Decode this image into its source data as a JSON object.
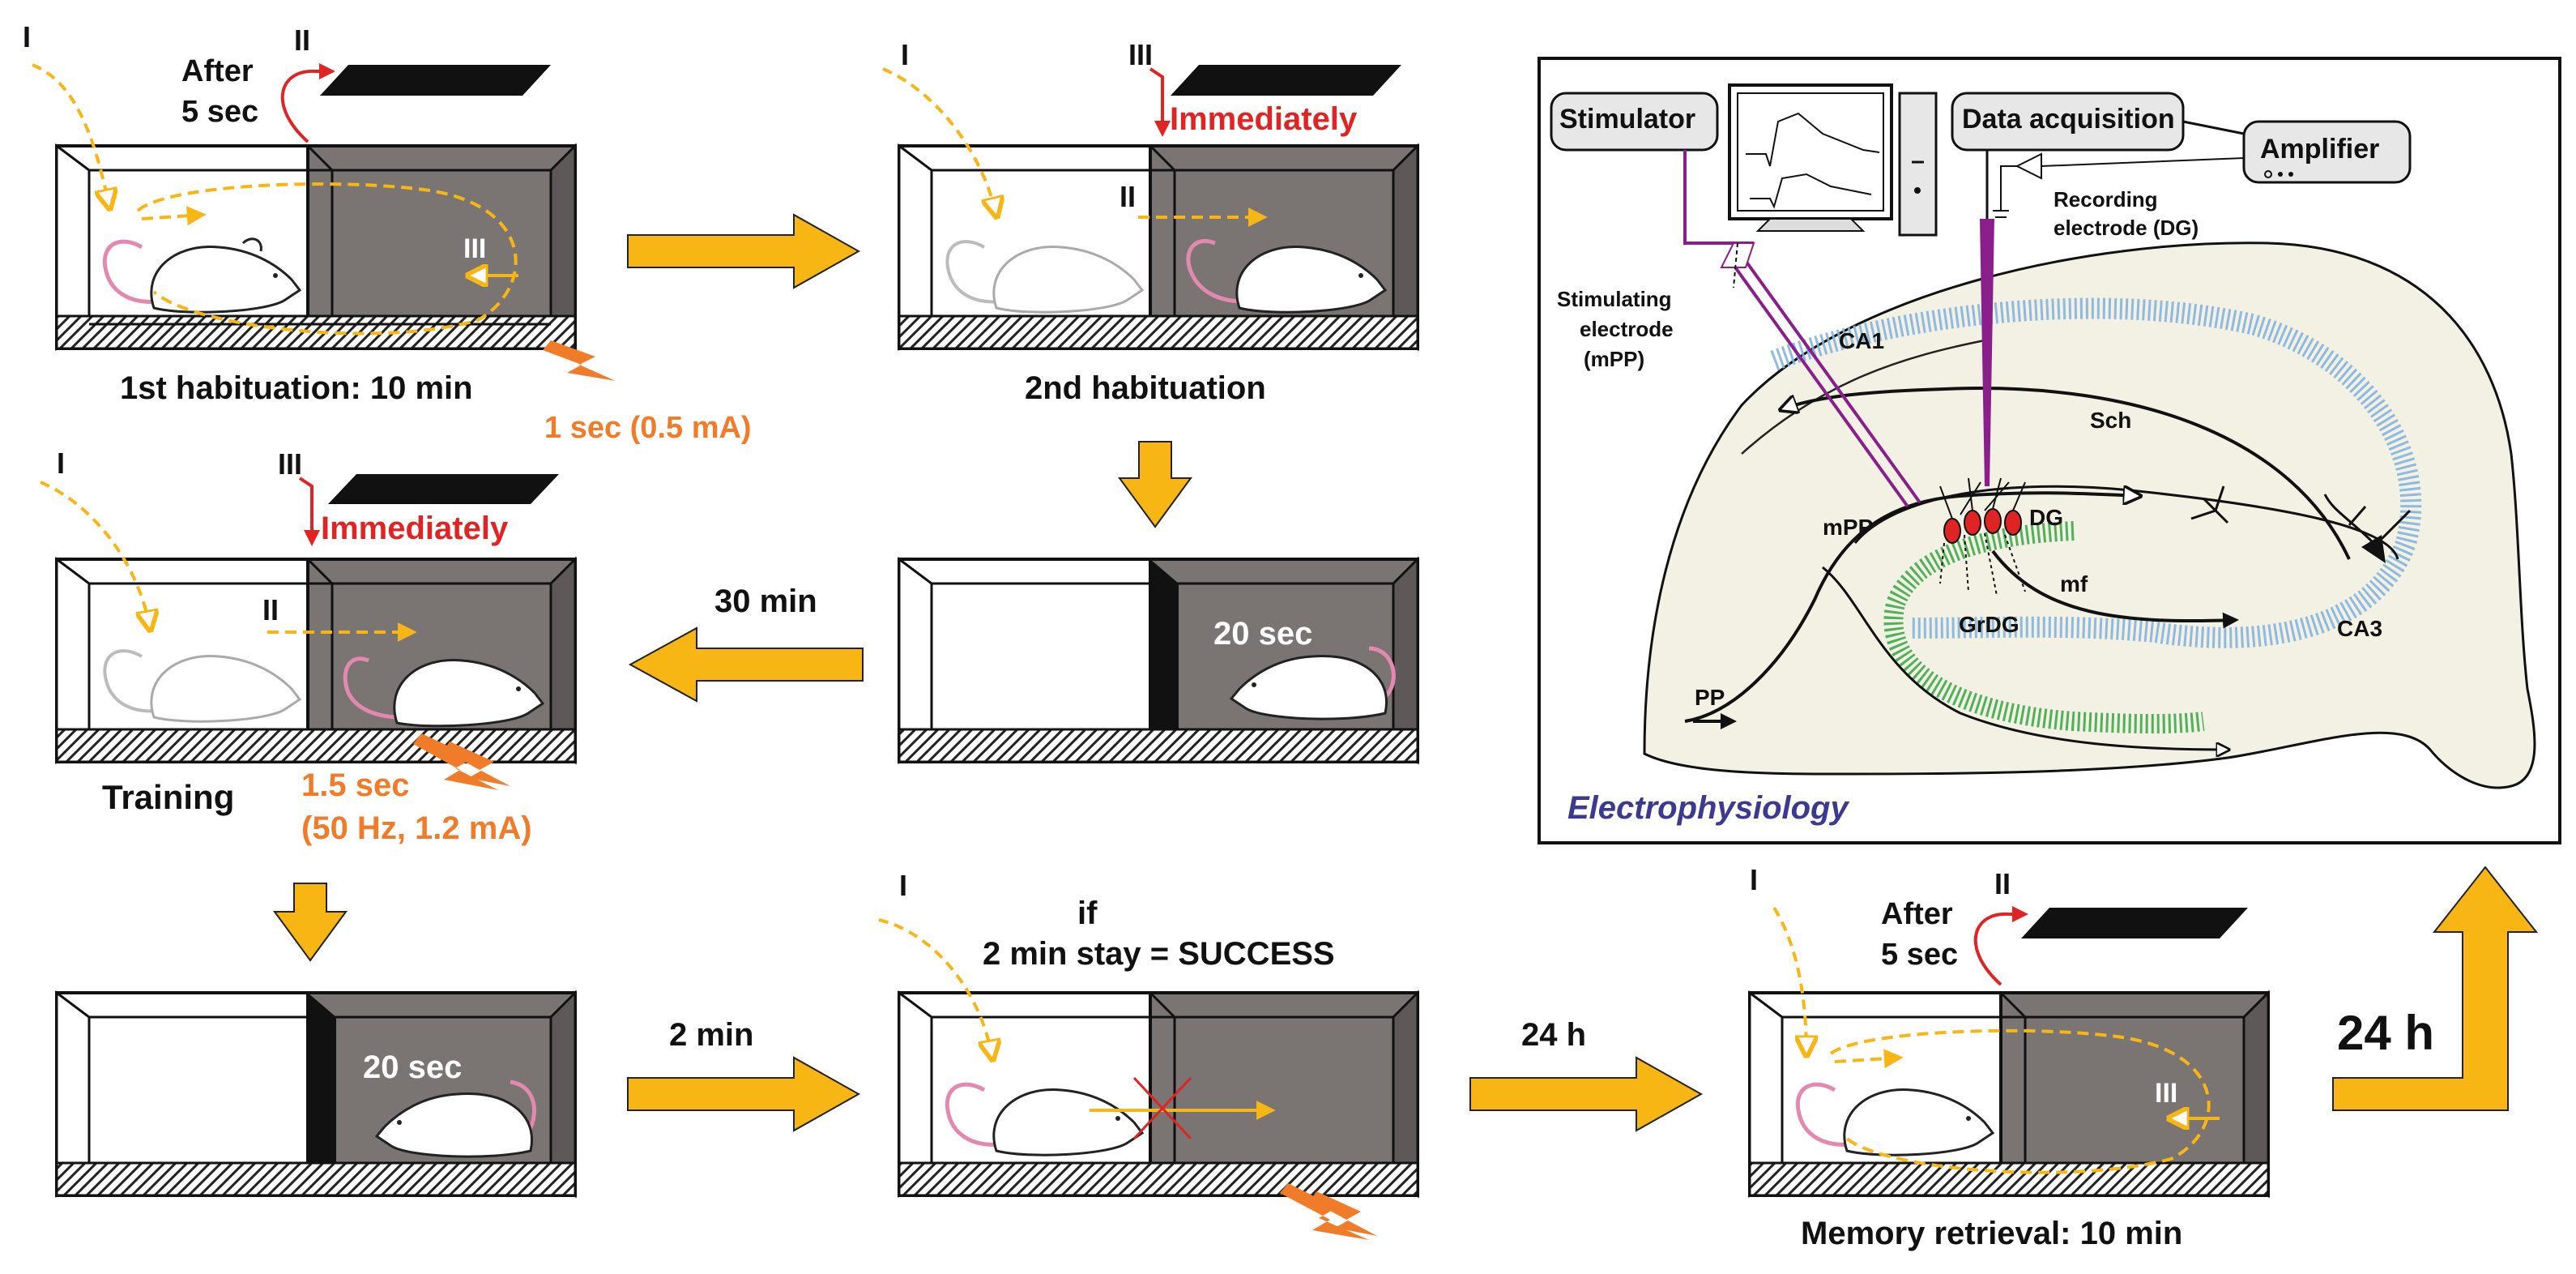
{
  "panel1": {
    "marker_i": "I",
    "marker_ii": "II",
    "marker_iii": "III",
    "after_line1": "After",
    "after_line2": "5 sec",
    "caption": "1st habituation: 10 min",
    "shock": "1 sec (0.5 mA)"
  },
  "panel2": {
    "marker_i": "I",
    "marker_ii": "II",
    "marker_iii": "III",
    "immediately": "Immediately",
    "caption": "2nd habituation"
  },
  "panel3": {
    "marker_i": "I",
    "marker_ii": "II",
    "marker_iii": "III",
    "immediately": "Immediately",
    "caption": "Training",
    "shock_line1": "1.5 sec",
    "shock_line2": "(50 Hz, 1.2 mA)"
  },
  "panel4": {
    "timer": "20 sec"
  },
  "panel5": {
    "timer": "20 sec"
  },
  "panel6": {
    "marker_i": "I",
    "if_line": "if",
    "success_line": "2 min stay = SUCCESS"
  },
  "panel7": {
    "marker_i": "I",
    "marker_ii": "II",
    "marker_iii": "III",
    "after_line1": "After",
    "after_line2": "5 sec",
    "caption": "Memory retrieval: 10 min"
  },
  "arrows": {
    "thirty_min": "30 min",
    "two_min": "2 min",
    "twentyfour_h_a": "24 h",
    "twentyfour_h_b": "24 h"
  },
  "ephys": {
    "stimulator": "Stimulator",
    "data_acquisition": "Data acquisition",
    "amplifier": "Amplifier",
    "recording_line1": "Recording",
    "recording_line2": "electrode (DG)",
    "stim_line1": "Stimulating",
    "stim_line2": "electrode",
    "stim_line3": "(mPP)",
    "ca1": "CA1",
    "sch": "Sch",
    "mpp": "mPP",
    "dg": "DG",
    "grdg": "GrDG",
    "mf": "mf",
    "ca3": "CA3",
    "pp": "PP",
    "title": "Electrophysiology"
  },
  "colors": {
    "accent_yellow": "#f7b614",
    "red": "#e02424",
    "orange": "#f07c2a",
    "dark_chamber": "#7a7472",
    "hippo_fill": "#f2f1e4",
    "ca_blue": "#84b4de",
    "dg_green": "#3fa84a",
    "electrode_purple": "#8a1f8c",
    "title_purple": "#3b3a8e"
  }
}
